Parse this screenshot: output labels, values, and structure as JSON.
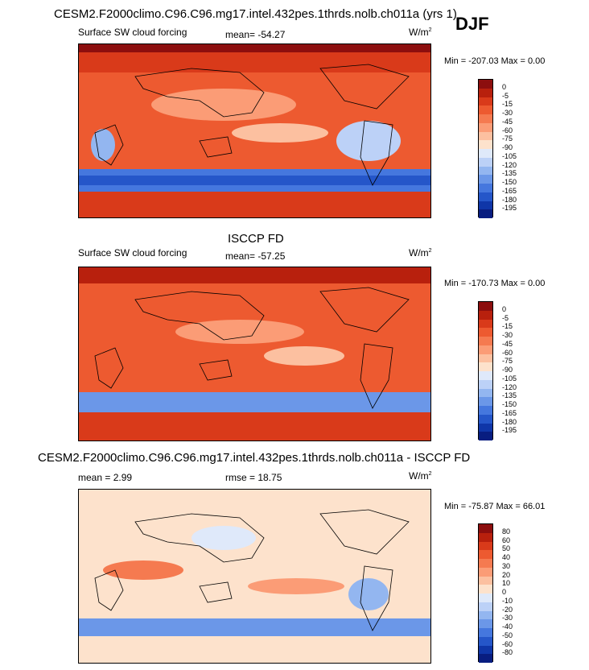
{
  "season": "DJF",
  "palettes": {
    "field": [
      "#8c0e0e",
      "#b8200d",
      "#d93a1a",
      "#ed5a30",
      "#f57a50",
      "#fb9c76",
      "#fcc0a0",
      "#fde2cc",
      "#dfe9fa",
      "#bcd1f7",
      "#93b6f0",
      "#6b97e8",
      "#4577de",
      "#2556c9",
      "#0f36a8",
      "#081d80"
    ],
    "diff": [
      "#8c0e0e",
      "#b8200d",
      "#d93a1a",
      "#ed5a30",
      "#f57a50",
      "#fb9c76",
      "#fcc0a0",
      "#fde2cc",
      "#dfe9fa",
      "#bcd1f7",
      "#93b6f0",
      "#6b97e8",
      "#4577de",
      "#2556c9",
      "#0f36a8",
      "#081d80"
    ]
  },
  "panels": [
    {
      "title": "CESM2.F2000climo.C96.C96.mg17.intel.432pes.1thrds.nolb.ch011a (yrs 1)",
      "left_label": "Surface SW cloud forcing",
      "mean_label": "mean= -54.27",
      "units": "W/m",
      "units_sup": "2",
      "minmax": "Min = -207.03 Max =   0.00",
      "colorbar_levels": [
        "0",
        "-5",
        "-15",
        "-30",
        "-45",
        "-60",
        "-75",
        "-90",
        "-105",
        "-120",
        "-135",
        "-150",
        "-165",
        "-180",
        "-195"
      ]
    },
    {
      "title": "ISCCP FD",
      "left_label": "Surface SW cloud forcing",
      "mean_label": "mean= -57.25",
      "units": "W/m",
      "units_sup": "2",
      "minmax": "Min = -170.73 Max =   0.00",
      "colorbar_levels": [
        "0",
        "-5",
        "-15",
        "-30",
        "-45",
        "-60",
        "-75",
        "-90",
        "-105",
        "-120",
        "-135",
        "-150",
        "-165",
        "-180",
        "-195"
      ]
    },
    {
      "title": "CESM2.F2000climo.C96.C96.mg17.intel.432pes.1thrds.nolb.ch011a - ISCCP FD",
      "left_label": "mean =   2.99",
      "mean_label": "rmse =  18.75",
      "units": "W/m",
      "units_sup": "2",
      "minmax": "Min = -75.87 Max =  66.01",
      "colorbar_levels": [
        "80",
        "60",
        "50",
        "40",
        "30",
        "20",
        "10",
        "0",
        "-10",
        "-20",
        "-30",
        "-40",
        "-50",
        "-60",
        "-80"
      ]
    }
  ],
  "chart_data": [
    {
      "type": "heatmap",
      "title": "CESM2.F2000climo.C96.C96.mg17.intel.432pes.1thrds.nolb.ch011a (yrs 1)",
      "subtitle": "Surface SW cloud forcing",
      "season": "DJF",
      "units": "W/m2",
      "mean": -54.27,
      "min": -207.03,
      "max": 0.0,
      "contour_levels": [
        0,
        -5,
        -15,
        -30,
        -45,
        -60,
        -75,
        -90,
        -105,
        -120,
        -135,
        -150,
        -165,
        -180,
        -195
      ],
      "features": [
        "strongest negative forcing (blue, below -105) in Southern Ocean band",
        "moderate negative (-30 to -60) over tropical/subtropical oceans",
        "near zero over polar north and deserts"
      ]
    },
    {
      "type": "heatmap",
      "title": "ISCCP FD",
      "subtitle": "Surface SW cloud forcing",
      "season": "DJF",
      "units": "W/m2",
      "mean": -57.25,
      "min": -170.73,
      "max": 0.0,
      "contour_levels": [
        0,
        -5,
        -15,
        -30,
        -45,
        -60,
        -75,
        -90,
        -105,
        -120,
        -135,
        -150,
        -165,
        -180,
        -195
      ]
    },
    {
      "type": "heatmap",
      "title": "CESM2.F2000climo.C96.C96.mg17.intel.432pes.1thrds.nolb.ch011a - ISCCP FD",
      "season": "DJF",
      "units": "W/m2",
      "mean": 2.99,
      "rmse": 18.75,
      "min": -75.87,
      "max": 66.01,
      "contour_levels": [
        80,
        60,
        50,
        40,
        30,
        20,
        10,
        0,
        -10,
        -20,
        -30,
        -40,
        -50,
        -60,
        -80
      ]
    }
  ]
}
